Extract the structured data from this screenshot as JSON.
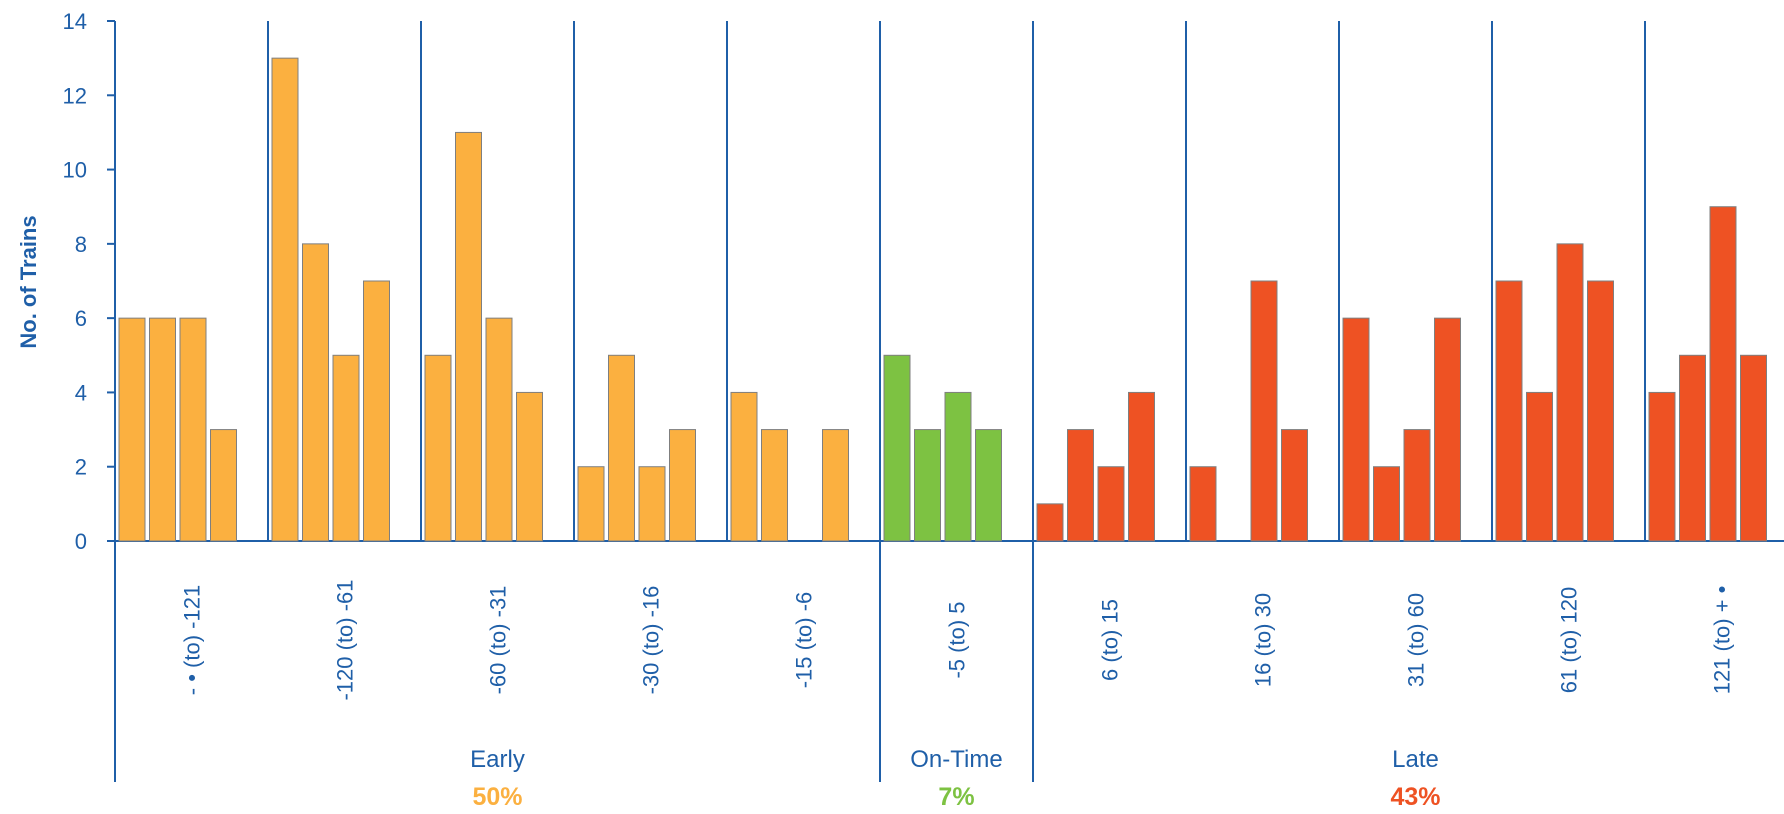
{
  "chart_data": {
    "type": "bar",
    "ylabel": "No. of Trains",
    "ylim": [
      0,
      14
    ],
    "yticks": [
      0,
      2,
      4,
      6,
      8,
      10,
      12,
      14
    ],
    "grid": false,
    "legend": "none",
    "categories": [
      {
        "label": "- •  (to) -121",
        "group": "Early",
        "values": [
          6,
          6,
          6,
          3
        ]
      },
      {
        "label": "-120 (to) -61",
        "group": "Early",
        "values": [
          13,
          8,
          5,
          7
        ]
      },
      {
        "label": "-60 (to) -31",
        "group": "Early",
        "values": [
          5,
          11,
          6,
          4
        ]
      },
      {
        "label": "-30 (to) -16",
        "group": "Early",
        "values": [
          2,
          5,
          2,
          3
        ]
      },
      {
        "label": "-15 (to) -6",
        "group": "Early",
        "values": [
          4,
          3,
          0,
          3
        ]
      },
      {
        "label": "-5 (to) 5",
        "group": "On-Time",
        "values": [
          5,
          3,
          4,
          3
        ]
      },
      {
        "label": "6 (to) 15",
        "group": "Late",
        "values": [
          1,
          3,
          2,
          4
        ]
      },
      {
        "label": "16 (to) 30",
        "group": "Late",
        "values": [
          2,
          0,
          7,
          3
        ]
      },
      {
        "label": "31 (to) 60",
        "group": "Late",
        "values": [
          6,
          2,
          3,
          6
        ]
      },
      {
        "label": "61 (to) 120",
        "group": "Late",
        "values": [
          7,
          4,
          8,
          7
        ]
      },
      {
        "label": "121 (to) + •",
        "group": "Late",
        "values": [
          4,
          5,
          9,
          5
        ]
      }
    ],
    "groups": [
      {
        "name": "Early",
        "percent": "50%",
        "color": "#fbb040"
      },
      {
        "name": "On-Time",
        "percent": "7%",
        "color": "#7dc242"
      },
      {
        "name": "Late",
        "percent": "43%",
        "color": "#ee5223"
      }
    ],
    "axis_color": "#1f5fa8"
  }
}
